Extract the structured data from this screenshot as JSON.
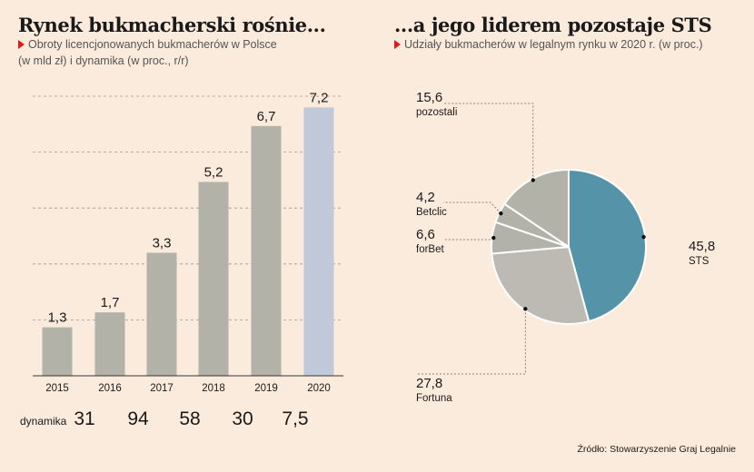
{
  "left": {
    "title": "Rynek bukmacherski rośnie...",
    "subtitle_line1": "Obroty licencjonowanych bukmacherów w Polsce",
    "subtitle_line2": "(w mld zł) i dynamika (w proc., r/r)",
    "dynamics_label": "dynamika",
    "dynamics": [
      "31",
      "94",
      "58",
      "30",
      "7,5"
    ]
  },
  "right": {
    "title": "...a jego liderem pozostaje STS",
    "subtitle": "Udziały bukmacherów w legalnym rynku w 2020 r. (w proc.)"
  },
  "source": "Źródło: Stowarzyszenie Graj Legalnie",
  "colors": {
    "bar": "#b3b2a9",
    "bar_highlight": "#bfc9d9",
    "grid": "#9a9a9a",
    "sts": "#5594a8",
    "others": "#b3b2a9",
    "fortuna": "#bcbab3",
    "accent": "#e0191e"
  },
  "chart_data": [
    {
      "type": "bar",
      "categories": [
        "2015",
        "2016",
        "2017",
        "2018",
        "2019",
        "2020"
      ],
      "values": [
        1.3,
        1.7,
        3.3,
        5.2,
        6.7,
        7.2
      ],
      "value_labels": [
        "1,3",
        "1,7",
        "3,3",
        "5,2",
        "6,7",
        "7,2"
      ],
      "highlight_index": 5,
      "ylim": [
        0,
        7.5
      ],
      "grid": true
    },
    {
      "type": "pie",
      "slices": [
        {
          "label": "STS",
          "value": 45.8,
          "value_label": "45,8"
        },
        {
          "label": "Fortuna",
          "value": 27.8,
          "value_label": "27,8"
        },
        {
          "label": "forBet",
          "value": 6.6,
          "value_label": "6,6"
        },
        {
          "label": "Betclic",
          "value": 4.2,
          "value_label": "4,2"
        },
        {
          "label": "pozostali",
          "value": 15.6,
          "value_label": "15,6"
        }
      ]
    }
  ]
}
